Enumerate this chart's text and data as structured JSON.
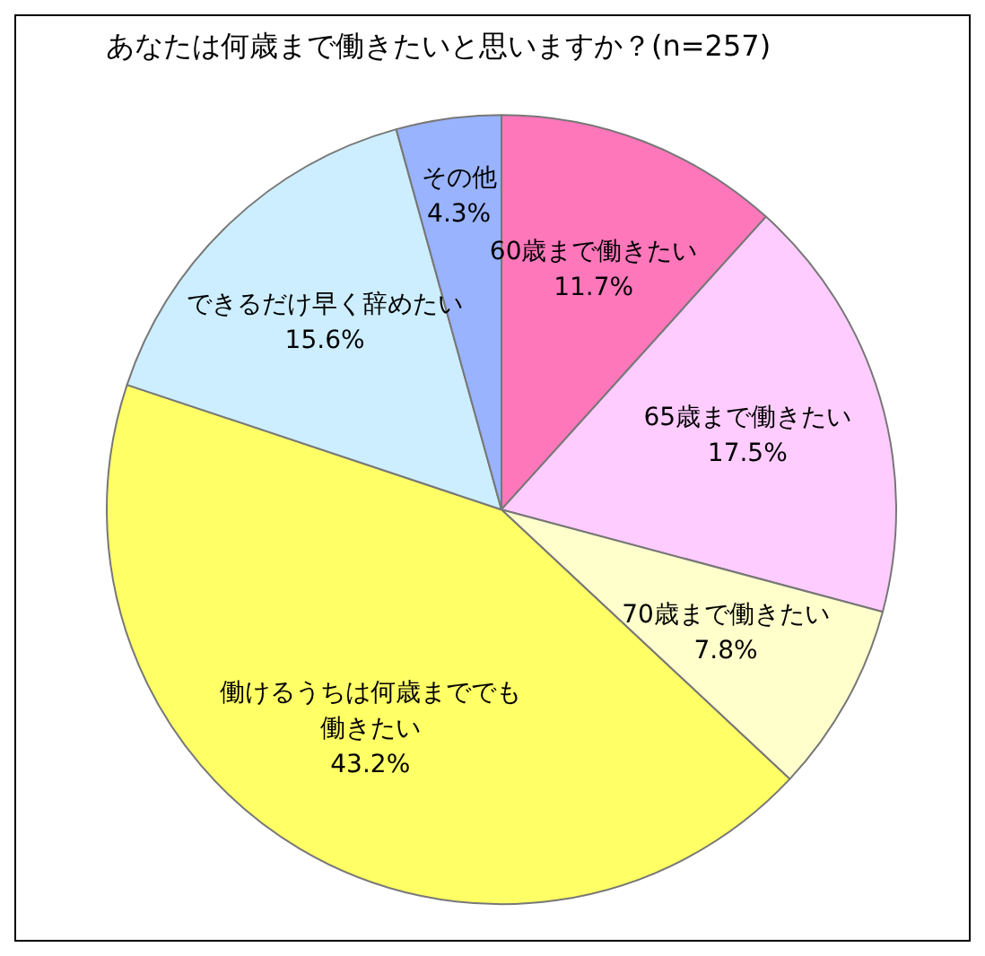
{
  "chart_data": {
    "type": "pie",
    "title": "あなたは何歳まで働きたいと思いますか？(n=257)",
    "categories": [
      "60歳まで働きたい",
      "65歳まで働きたい",
      "70歳まで働きたい",
      "働けるうちは何歳まででも働きたい",
      "できるだけ早く辞めたい",
      "その他"
    ],
    "values": [
      11.7,
      17.5,
      7.8,
      43.2,
      15.6,
      4.3
    ],
    "value_labels": [
      "11.7%",
      "17.5%",
      "7.8%",
      "43.2%",
      "15.6%",
      "4.3%"
    ],
    "colors": [
      "#ff77bb",
      "#ffccff",
      "#ffffcc",
      "#ffff66",
      "#cceeff",
      "#99b3ff"
    ],
    "legend": false
  }
}
